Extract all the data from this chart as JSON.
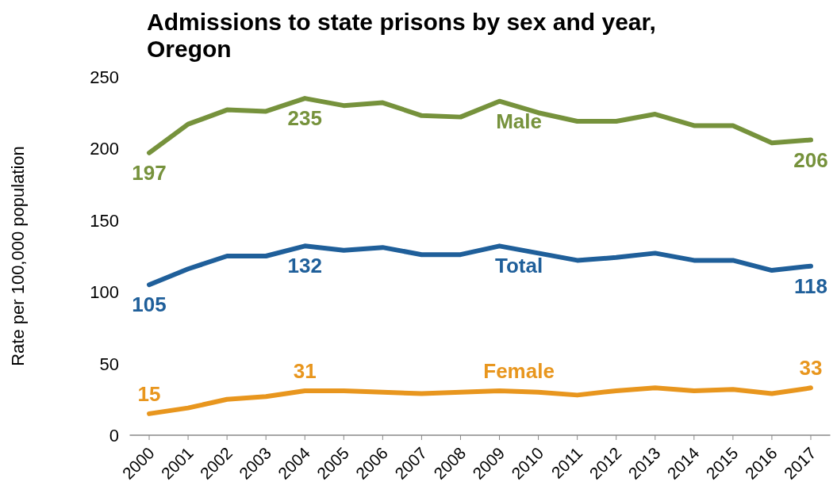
{
  "chart_data": {
    "type": "line",
    "title": "Admissions to state prisons by sex and year, Oregon",
    "ylabel": "Rate per 100,000 population",
    "x": [
      2000,
      2001,
      2002,
      2003,
      2004,
      2005,
      2006,
      2007,
      2008,
      2009,
      2010,
      2011,
      2012,
      2013,
      2014,
      2015,
      2016,
      2017
    ],
    "xlim": [
      1999.5,
      2017.5
    ],
    "xticks": [
      2000,
      2001,
      2002,
      2003,
      2004,
      2005,
      2006,
      2007,
      2008,
      2009,
      2010,
      2011,
      2012,
      2013,
      2014,
      2015,
      2016,
      2017
    ],
    "ylim": [
      0,
      250
    ],
    "yticks": [
      0,
      50,
      100,
      150,
      200,
      250
    ],
    "grid": false,
    "legend": false,
    "marker": "none",
    "line_style": "solid",
    "series": [
      {
        "name": "Male",
        "color": "#76923c",
        "values": [
          197,
          217,
          227,
          226,
          235,
          230,
          232,
          223,
          222,
          233,
          225,
          219,
          219,
          224,
          216,
          216,
          204,
          206
        ],
        "value_labels": [
          "197",
          null,
          null,
          null,
          "235",
          null,
          null,
          null,
          null,
          null,
          null,
          null,
          null,
          null,
          null,
          null,
          null,
          "206"
        ]
      },
      {
        "name": "Total",
        "color": "#1f5f9a",
        "values": [
          105,
          116,
          125,
          125,
          132,
          129,
          131,
          126,
          126,
          132,
          127,
          122,
          124,
          127,
          122,
          122,
          115,
          118
        ],
        "value_labels": [
          "105",
          null,
          null,
          null,
          "132",
          null,
          null,
          null,
          null,
          null,
          null,
          null,
          null,
          null,
          null,
          null,
          null,
          "118"
        ]
      },
      {
        "name": "Female",
        "color": "#e8961e",
        "values": [
          15,
          19,
          25,
          27,
          31,
          31,
          30,
          29,
          30,
          31,
          30,
          28,
          31,
          33,
          31,
          32,
          29,
          33
        ],
        "value_labels": [
          "15",
          null,
          null,
          null,
          "31",
          null,
          null,
          null,
          null,
          null,
          null,
          null,
          null,
          null,
          null,
          null,
          null,
          "33"
        ]
      }
    ]
  }
}
